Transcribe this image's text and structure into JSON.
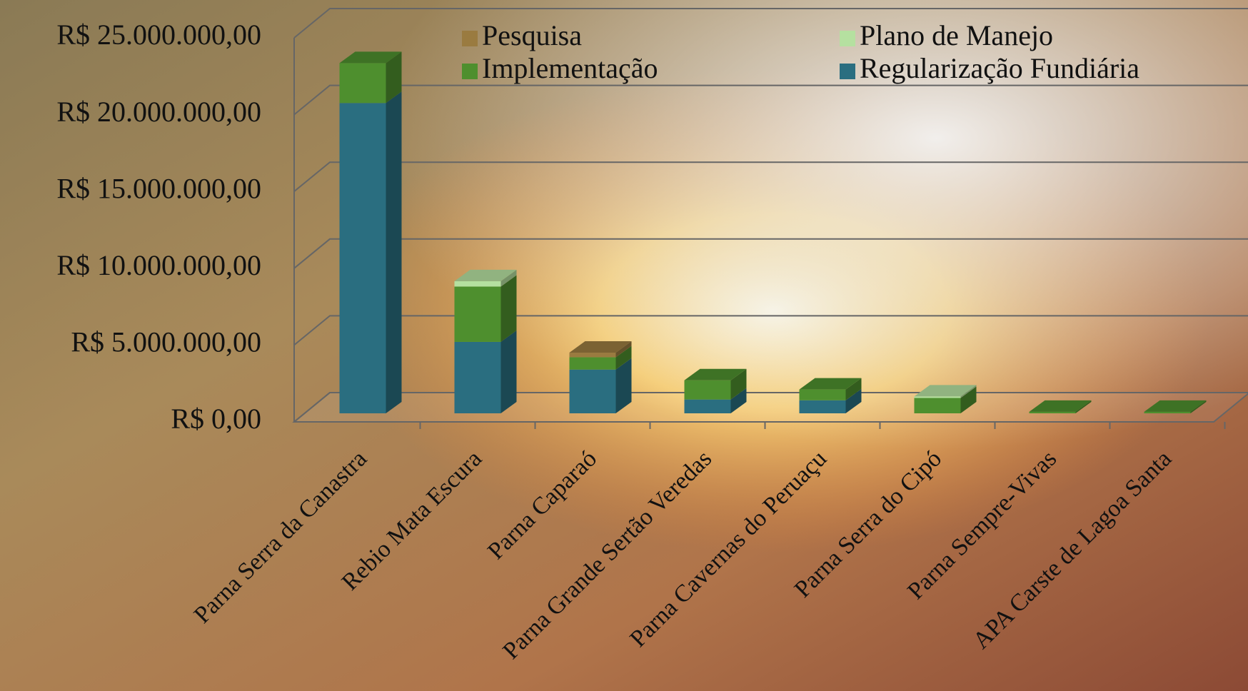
{
  "chart_data": {
    "type": "bar3d_stacked",
    "categories": [
      "Parna Serra da Canastra",
      "Rebio Mata Escura",
      "Parna Caparaó",
      "Parna Grande Sertão Veredas",
      "Parna Cavernas do Peruaçu",
      "Parna Serra do Cipó",
      "Parna Sempre-Vivas",
      "APA Carste de Lagoa Santa"
    ],
    "series": [
      {
        "name": "Regularização Fundiária",
        "color": "#2a6e80",
        "values": [
          20200000,
          4650000,
          2850000,
          900000,
          850000,
          0,
          0,
          0
        ]
      },
      {
        "name": "Implementação",
        "color": "#4e8f2e",
        "values": [
          2600000,
          3600000,
          800000,
          1250000,
          700000,
          1000000,
          100000,
          100000
        ]
      },
      {
        "name": "Plano de Manejo",
        "color": "#b5e0a0",
        "values": [
          0,
          350000,
          0,
          0,
          0,
          100000,
          0,
          0
        ]
      },
      {
        "name": "Pesquisa",
        "color": "#9a7b40",
        "values": [
          0,
          0,
          300000,
          0,
          0,
          0,
          0,
          0
        ]
      }
    ],
    "ylim": [
      0,
      25000000
    ],
    "yticks": [
      {
        "value": 0,
        "label": "R$ 0,00"
      },
      {
        "value": 5000000,
        "label": "R$ 5.000.000,00"
      },
      {
        "value": 10000000,
        "label": "R$ 10.000.000,00"
      },
      {
        "value": 15000000,
        "label": "R$ 15.000.000,00"
      },
      {
        "value": 20000000,
        "label": "R$ 20.000.000,00"
      },
      {
        "value": 25000000,
        "label": "R$ 25.000.000,00"
      }
    ],
    "grid": true
  }
}
